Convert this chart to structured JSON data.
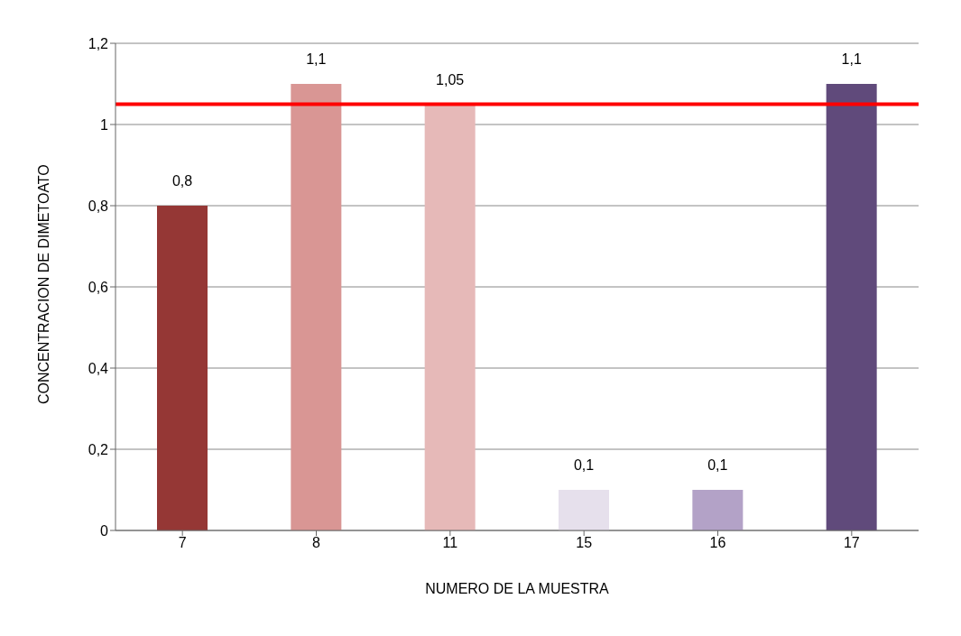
{
  "chart_data": {
    "type": "bar",
    "xlabel": "NUMERO DE LA MUESTRA",
    "ylabel": "CONCENTRACION DE DIMETOATO",
    "categories": [
      "7",
      "8",
      "11",
      "15",
      "16",
      "17"
    ],
    "values": [
      0.8,
      1.1,
      1.05,
      0.1,
      0.1,
      1.1
    ],
    "colors": [
      "#953735",
      "#d99694",
      "#e6b9b8",
      "#e6e0ec",
      "#b3a2c7",
      "#604a7b"
    ],
    "value_labels": [
      "0,8",
      "1,1",
      "1,05",
      "0,1",
      "0,1",
      "1,1"
    ],
    "ylim": [
      0,
      1.2
    ],
    "yticks": [
      {
        "value": 0,
        "label": "0"
      },
      {
        "value": 0.2,
        "label": "0,2"
      },
      {
        "value": 0.4,
        "label": "0,4"
      },
      {
        "value": 0.6,
        "label": "0,6"
      },
      {
        "value": 0.8,
        "label": "0,8"
      },
      {
        "value": 1,
        "label": "1"
      },
      {
        "value": 1.2,
        "label": "1,2"
      }
    ],
    "grid": "y",
    "ref_lines": [
      {
        "axis": "y",
        "value": 1.05,
        "color": "#ff0000"
      }
    ]
  }
}
